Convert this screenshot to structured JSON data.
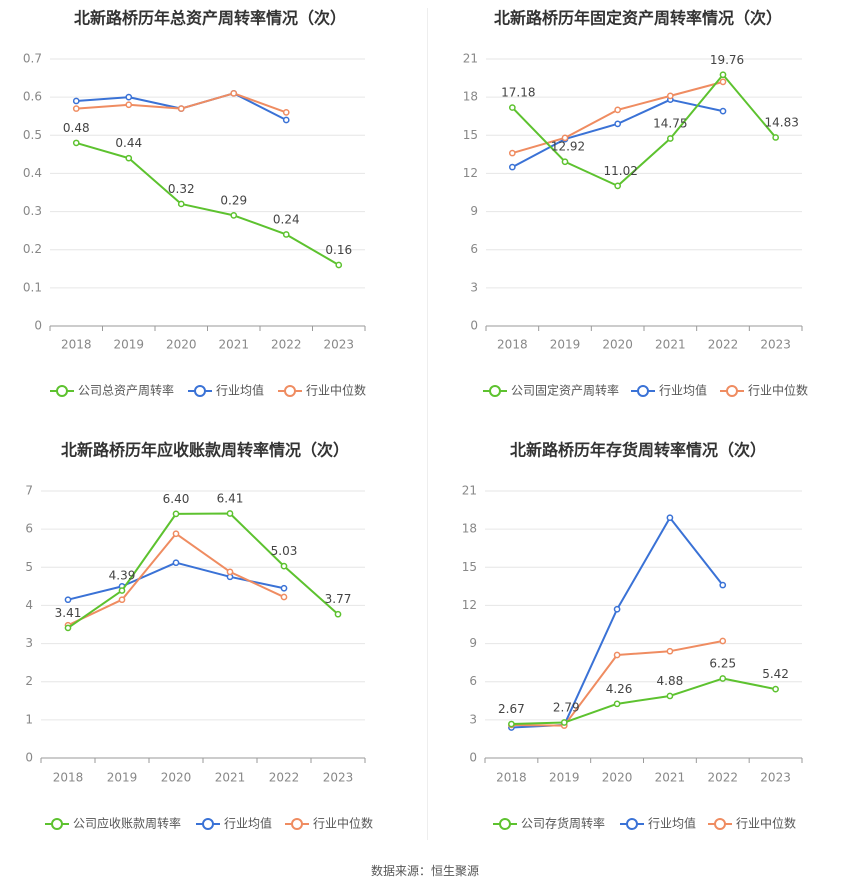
{
  "source": "数据来源：恒生聚源",
  "legend_labels": [
    "行业均值",
    "行业中位数"
  ],
  "colors": {
    "company": "#5dc22f",
    "avg": "#3a72d6",
    "median": "#ef8c61",
    "grid": "#e6e6e6",
    "axis": "#9a9a9a"
  },
  "chart_data": [
    {
      "type": "line",
      "title": "北新路桥历年总资产周转率情况（次）",
      "categories": [
        "2018",
        "2019",
        "2020",
        "2021",
        "2022",
        "2023"
      ],
      "ylim": [
        0,
        0.7
      ],
      "yticks": [
        "0",
        "0.1",
        "0.2",
        "0.3",
        "0.4",
        "0.5",
        "0.6",
        "0.7"
      ],
      "series": [
        {
          "name": "公司总资产周转率",
          "values": [
            0.48,
            0.44,
            0.32,
            0.29,
            0.24,
            0.16
          ],
          "labels": [
            "0.48",
            "0.44",
            "0.32",
            "0.29",
            "0.24",
            "0.16"
          ]
        },
        {
          "name": "行业均值",
          "values": [
            0.59,
            0.6,
            0.57,
            0.61,
            0.54,
            null
          ]
        },
        {
          "name": "行业中位数",
          "values": [
            0.57,
            0.58,
            0.57,
            0.61,
            0.56,
            null
          ]
        }
      ]
    },
    {
      "type": "line",
      "title": "北新路桥历年固定资产周转率情况（次）",
      "categories": [
        "2018",
        "2019",
        "2020",
        "2021",
        "2022",
        "2023"
      ],
      "ylim": [
        0,
        21
      ],
      "yticks": [
        "0",
        "3",
        "6",
        "9",
        "12",
        "15",
        "18",
        "21"
      ],
      "series": [
        {
          "name": "公司固定资产周转率",
          "values": [
            17.18,
            12.92,
            11.02,
            14.75,
            19.76,
            14.83
          ],
          "labels": [
            "17.18",
            "12.92",
            "11.02",
            "14.75",
            "19.76",
            "14.83"
          ]
        },
        {
          "name": "行业均值",
          "values": [
            12.5,
            14.7,
            15.9,
            17.8,
            16.9,
            null
          ]
        },
        {
          "name": "行业中位数",
          "values": [
            13.6,
            14.8,
            17.0,
            18.1,
            19.2,
            null
          ]
        }
      ]
    },
    {
      "type": "line",
      "title": "北新路桥历年应收账款周转率情况（次）",
      "categories": [
        "2018",
        "2019",
        "2020",
        "2021",
        "2022",
        "2023"
      ],
      "ylim": [
        0,
        7
      ],
      "yticks": [
        "0",
        "1",
        "2",
        "3",
        "4",
        "5",
        "6",
        "7"
      ],
      "series": [
        {
          "name": "公司应收账款周转率",
          "values": [
            3.41,
            4.39,
            6.4,
            6.41,
            5.03,
            3.77
          ],
          "labels": [
            "3.41",
            "4.39",
            "6.40",
            "6.41",
            "5.03",
            "3.77"
          ]
        },
        {
          "name": "行业均值",
          "values": [
            4.15,
            4.5,
            5.12,
            4.75,
            4.45,
            null
          ]
        },
        {
          "name": "行业中位数",
          "values": [
            3.48,
            4.15,
            5.88,
            4.88,
            4.22,
            null
          ]
        }
      ]
    },
    {
      "type": "line",
      "title": "北新路桥历年存货周转率情况（次）",
      "categories": [
        "2018",
        "2019",
        "2020",
        "2021",
        "2022",
        "2023"
      ],
      "ylim": [
        0,
        21
      ],
      "yticks": [
        "0",
        "3",
        "6",
        "9",
        "12",
        "15",
        "18",
        "21"
      ],
      "series": [
        {
          "name": "公司存货周转率",
          "values": [
            2.67,
            2.79,
            4.26,
            4.88,
            6.25,
            5.42
          ],
          "labels": [
            "2.67",
            "2.79",
            "4.26",
            "4.88",
            "6.25",
            "5.42"
          ]
        },
        {
          "name": "行业均值",
          "values": [
            2.4,
            2.6,
            11.7,
            18.9,
            13.6,
            null
          ]
        },
        {
          "name": "行业中位数",
          "values": [
            2.6,
            2.55,
            8.1,
            8.4,
            9.2,
            null
          ]
        }
      ]
    }
  ]
}
